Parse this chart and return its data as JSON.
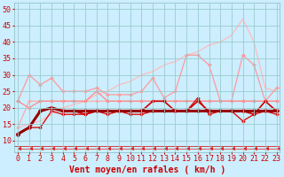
{
  "x": [
    0,
    1,
    2,
    3,
    4,
    5,
    6,
    7,
    8,
    9,
    10,
    11,
    12,
    13,
    14,
    15,
    16,
    17,
    18,
    19,
    20,
    21,
    22,
    23
  ],
  "series": [
    {
      "name": "diagonal_light",
      "color": "#ffbbbb",
      "lw": 0.9,
      "marker": "None",
      "ms": 0,
      "values": [
        14,
        15,
        16,
        18,
        20,
        21,
        22,
        24,
        25,
        27,
        28,
        30,
        31,
        33,
        34,
        36,
        37,
        39,
        40,
        42,
        47,
        40,
        26,
        25
      ]
    },
    {
      "name": "medium_pink1",
      "color": "#ff9999",
      "lw": 0.9,
      "marker": "D",
      "ms": 2.0,
      "values": [
        22,
        30,
        27,
        29,
        25,
        25,
        25,
        26,
        24,
        24,
        24,
        25,
        29,
        23,
        25,
        36,
        36,
        33,
        22,
        22,
        36,
        33,
        22,
        26
      ]
    },
    {
      "name": "medium_pink2",
      "color": "#ffaaaa",
      "lw": 0.9,
      "marker": "D",
      "ms": 2.0,
      "values": [
        14,
        22,
        22,
        22,
        22,
        22,
        22,
        22,
        22,
        22,
        22,
        22,
        22,
        22,
        22,
        22,
        22,
        22,
        22,
        22,
        22,
        22,
        22,
        22
      ]
    },
    {
      "name": "medium_pink3",
      "color": "#ff8888",
      "lw": 0.9,
      "marker": "D",
      "ms": 2.0,
      "values": [
        22,
        20,
        22,
        22,
        22,
        22,
        22,
        25,
        22,
        22,
        22,
        22,
        22,
        22,
        22,
        22,
        22,
        22,
        22,
        22,
        22,
        22,
        22,
        22
      ]
    },
    {
      "name": "dark_red1",
      "color": "#dd1111",
      "lw": 1.0,
      "marker": "D",
      "ms": 2.0,
      "values": [
        12,
        14,
        14,
        19,
        18,
        18,
        18,
        19,
        18,
        19,
        18,
        18,
        19,
        19,
        19,
        19,
        23,
        18,
        19,
        19,
        16,
        18,
        19,
        18
      ]
    },
    {
      "name": "dark_red2",
      "color": "#cc0000",
      "lw": 1.2,
      "marker": "D",
      "ms": 2.0,
      "values": [
        12,
        14,
        19,
        20,
        19,
        19,
        18,
        19,
        19,
        19,
        19,
        19,
        22,
        22,
        19,
        19,
        22,
        19,
        19,
        19,
        19,
        18,
        22,
        19
      ]
    },
    {
      "name": "darkest_red",
      "color": "#990000",
      "lw": 2.2,
      "marker": "D",
      "ms": 2.5,
      "values": [
        12,
        14,
        19,
        20,
        19,
        19,
        19,
        19,
        19,
        19,
        19,
        19,
        19,
        19,
        19,
        19,
        19,
        19,
        19,
        19,
        19,
        19,
        19,
        19
      ]
    },
    {
      "name": "wind_arrows",
      "color": "#dd2222",
      "lw": 0.5,
      "marker": 4,
      "ms": 3.5,
      "values": [
        7.5,
        7.5,
        7.5,
        7.5,
        7.5,
        7.5,
        7.5,
        7.5,
        7.5,
        7.5,
        7.5,
        7.5,
        7.5,
        7.5,
        7.5,
        7.5,
        7.5,
        7.5,
        7.5,
        7.5,
        7.5,
        7.5,
        7.5,
        7.5
      ]
    }
  ],
  "bgcolor": "#cceeff",
  "grid_color": "#99cccc",
  "xlabel": "Vent moyen/en rafales ( km/h )",
  "xlabel_color": "#cc0000",
  "xlabel_fontsize": 7,
  "tick_color": "#cc0000",
  "tick_fontsize": 6,
  "yticks": [
    10,
    15,
    20,
    25,
    30,
    35,
    40,
    45,
    50
  ],
  "ylim": [
    6.5,
    52
  ],
  "xlim": [
    -0.3,
    23.3
  ],
  "xticks": [
    0,
    1,
    2,
    3,
    4,
    5,
    6,
    7,
    8,
    9,
    10,
    11,
    12,
    13,
    14,
    15,
    16,
    17,
    18,
    19,
    20,
    21,
    22,
    23
  ]
}
